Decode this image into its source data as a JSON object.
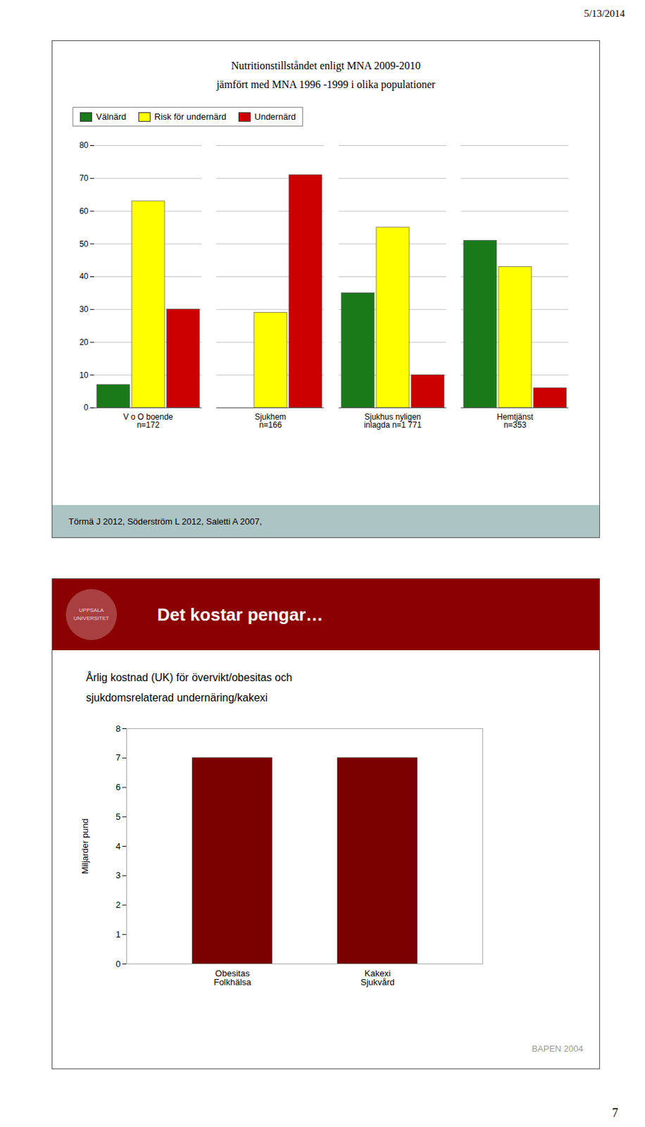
{
  "chart_data": [
    {
      "type": "bar",
      "title": "Nutritionstillståndet enligt MNA 2009-2010",
      "subtitle": "jämfört med MNA 1996 -1999 i olika populationer",
      "categories": [
        "V o O boende\nn=172",
        "Sjukhem\nn=166",
        "Sjukhus nyligen\ninlagda n=1 771",
        "Hemtjänst\nn=353"
      ],
      "series": [
        {
          "name": "Välnärd",
          "color": "#1a7a1a",
          "values": [
            7,
            0,
            35,
            51
          ]
        },
        {
          "name": "Risk för undernärd",
          "color": "#ffff00",
          "values": [
            63,
            29,
            55,
            43
          ]
        },
        {
          "name": "Undernärd",
          "color": "#cc0000",
          "values": [
            30,
            71,
            10,
            6
          ]
        }
      ],
      "ylim": [
        0,
        80
      ],
      "yticks": [
        0,
        10,
        20,
        30,
        40,
        50,
        60,
        70,
        80
      ],
      "grid": true,
      "legend": "upper left",
      "annotations": [
        "5/13/2014",
        "Törmä J 2012,  Söderström L 2012, Saletti A 2007,"
      ]
    },
    {
      "type": "bar",
      "title": "Det kostar pengar…",
      "subtitle": "Årlig kostnad (UK) för övervikt/obesitas och\nsjukdomsrelaterad undernäring/kakexi",
      "categories": [
        "Obesitas\nFolkhälsa",
        "Kakexi\nSjukvård"
      ],
      "values": [
        7.0,
        7.0
      ],
      "color": "#7b0000",
      "ylabel": "Miljarder pund",
      "ylim": [
        0,
        8
      ],
      "yticks": [
        0,
        1,
        2,
        3,
        4,
        5,
        6,
        7,
        8
      ],
      "grid": false,
      "annotations": [
        "UPPSALA",
        "UNIVERSITET",
        "BAPEN 2004",
        "7"
      ]
    }
  ]
}
